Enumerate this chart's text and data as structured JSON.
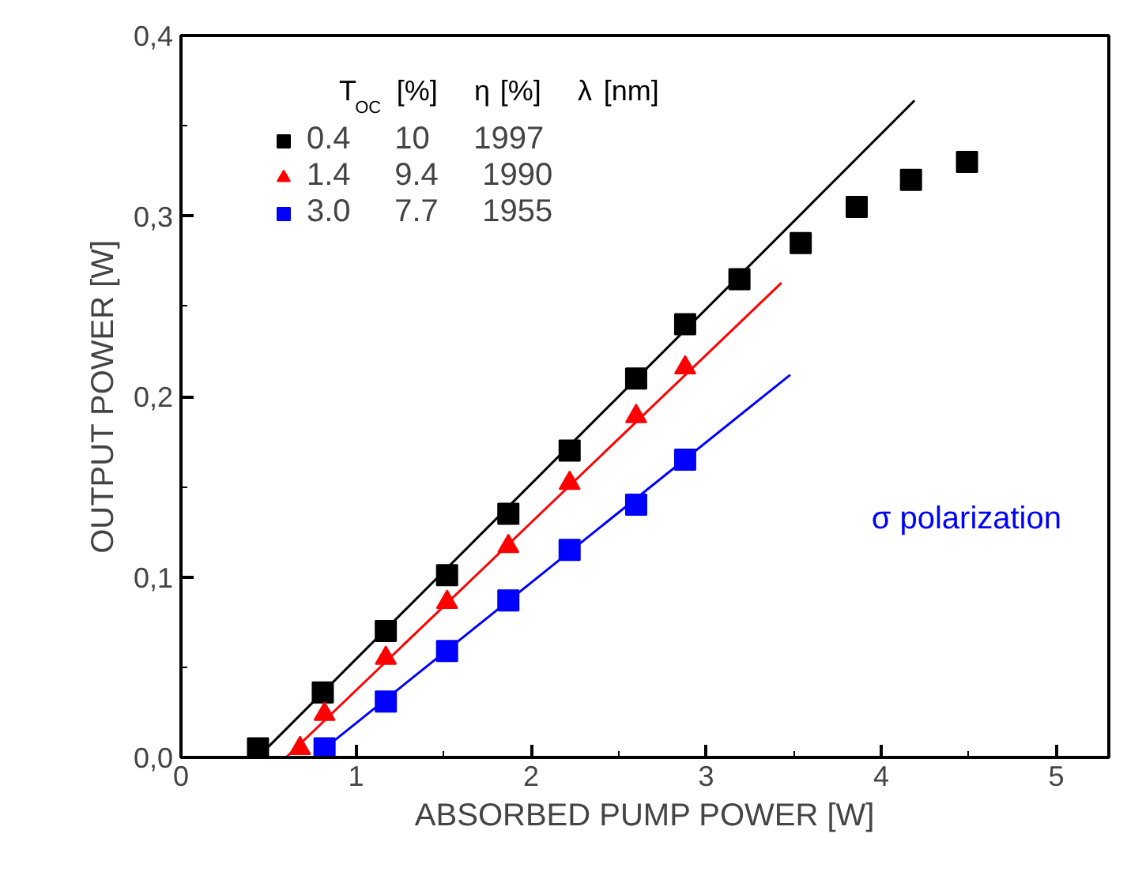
{
  "chart_data": {
    "type": "scatter",
    "xlabel": "ABSORBED PUMP POWER [W]",
    "ylabel": "OUTPUT POWER [W]",
    "legend_title": "T$_{OC}$ [%]   η [%]   λ [nm]",
    "xlim": [
      0,
      5.3
    ],
    "ylim": [
      0,
      0.4
    ],
    "xticks": [
      0,
      1,
      2,
      3,
      4,
      5
    ],
    "yticks": [
      {
        "value": 0,
        "label": "0,0"
      },
      {
        "value": 0.1,
        "label": "0,1"
      },
      {
        "value": 0.2,
        "label": "0,2"
      },
      {
        "value": 0.3,
        "label": "0,3"
      },
      {
        "value": 0.4,
        "label": "0,4"
      }
    ],
    "grid": false,
    "legend": "top left",
    "annotations": [
      "σ polarization"
    ],
    "series": [
      {
        "name": "0.4     10     1997",
        "color": "#000000",
        "marker": "square",
        "x": [
          0.44,
          0.81,
          1.17,
          1.52,
          1.87,
          2.22,
          2.6,
          2.88,
          3.19,
          3.54,
          3.86,
          4.17,
          4.49
        ],
        "values": [
          0.005,
          0.036,
          0.07,
          0.101,
          0.135,
          0.17,
          0.21,
          0.24,
          0.265,
          0.285,
          0.305,
          0.32,
          0.33
        ]
      },
      {
        "name": "1.4     9.4     1990",
        "color": "#ff0000",
        "marker": "triangle",
        "x": [
          0.68,
          0.82,
          1.17,
          1.52,
          1.87,
          2.22,
          2.6,
          2.88
        ],
        "values": [
          0.005,
          0.024,
          0.055,
          0.086,
          0.117,
          0.152,
          0.189,
          0.216
        ]
      },
      {
        "name": "3.0     7.7     1955",
        "color": "#0000ff",
        "marker": "square",
        "x": [
          0.82,
          1.17,
          1.52,
          1.87,
          2.22,
          2.6,
          2.88
        ],
        "values": [
          0.005,
          0.031,
          0.059,
          0.087,
          0.115,
          0.14,
          0.165
        ]
      },
      {
        "type": "line",
        "color": "#000000",
        "x": [
          0.49,
          4.19
        ],
        "values": [
          0.005,
          0.364
        ]
      },
      {
        "type": "line",
        "color": "#ff0000",
        "x": [
          0.6,
          3.43
        ],
        "values": [
          0.0,
          0.263
        ]
      },
      {
        "type": "line",
        "color": "#0000ff",
        "x": [
          0.82,
          3.48
        ],
        "values": [
          0.005,
          0.212
        ]
      }
    ]
  }
}
